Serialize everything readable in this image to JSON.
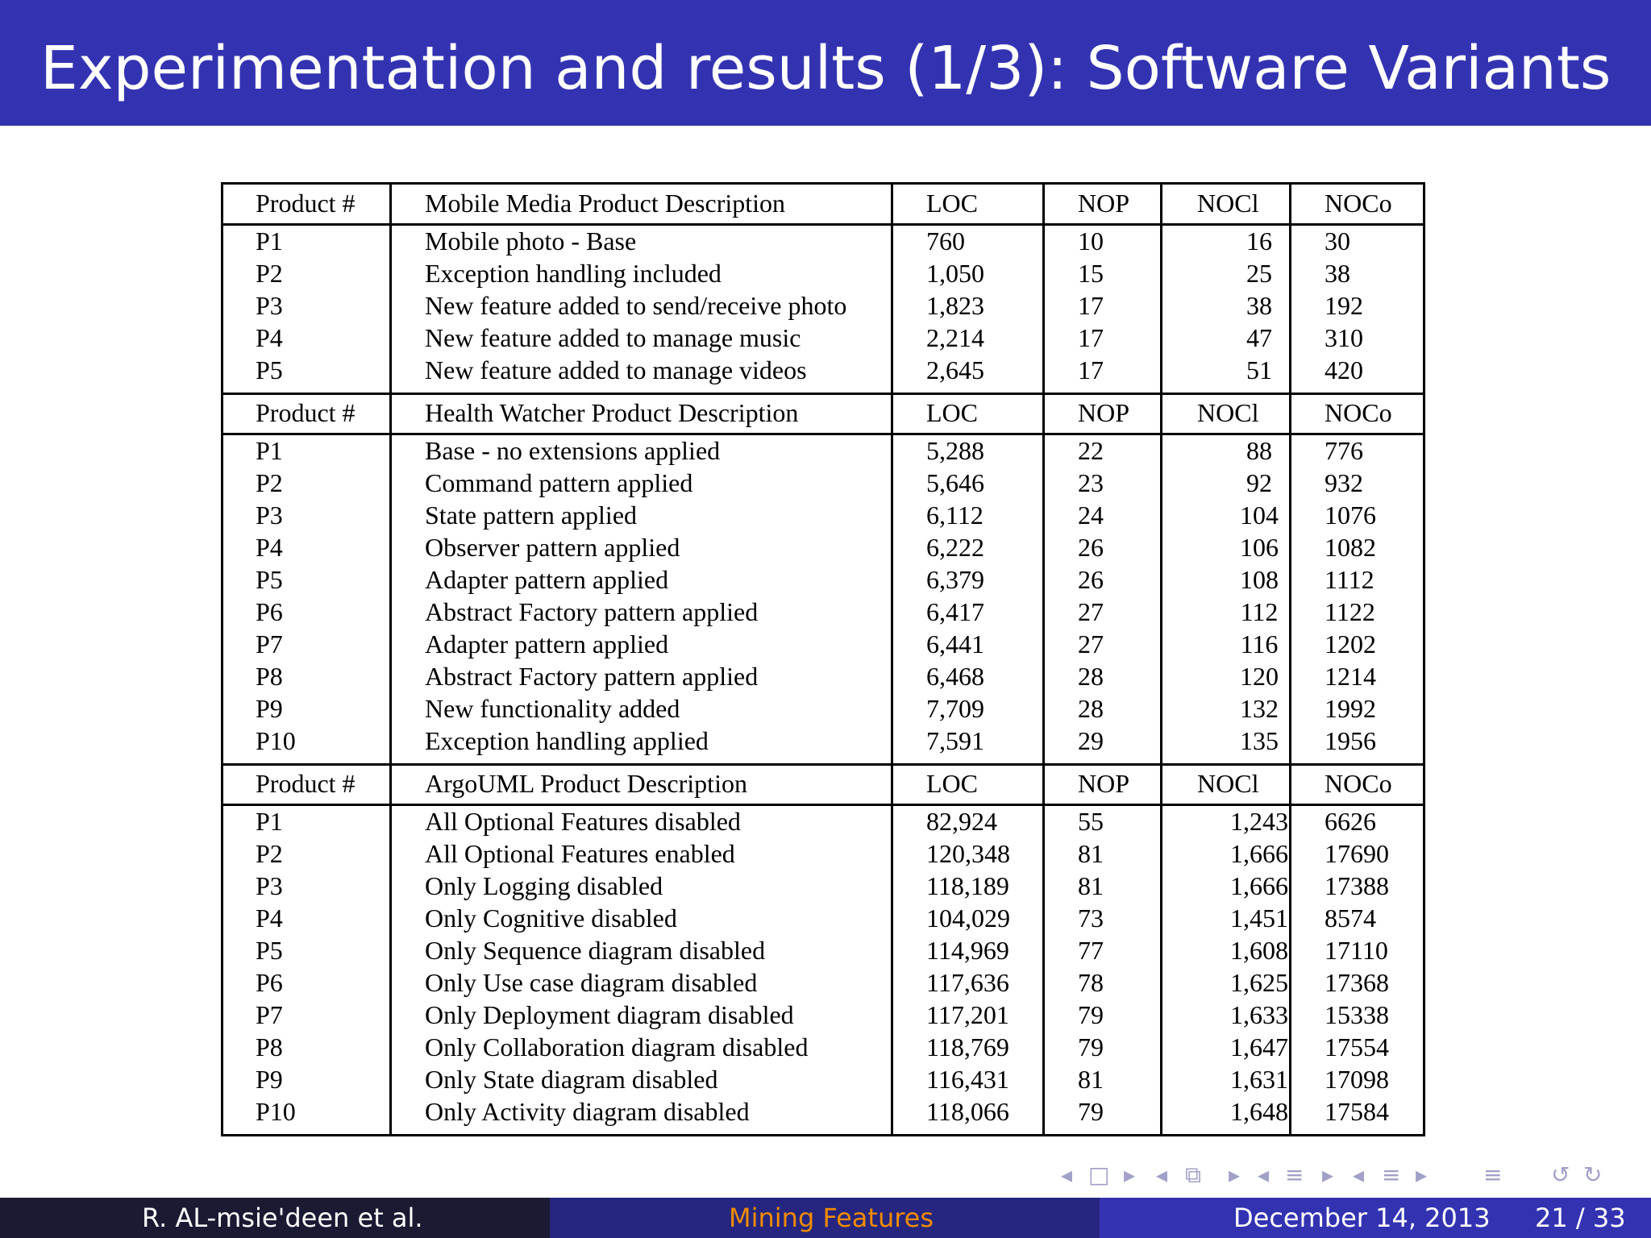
{
  "slide": {
    "title": "Experimentation and results (1/3): Software Variants"
  },
  "table": {
    "sections": [
      {
        "header": [
          "Product #",
          "Mobile Media Product Description",
          "LOC",
          "NOP",
          "NOCl",
          "NOCo"
        ],
        "rows": [
          [
            "P1",
            "Mobile photo - Base",
            "760",
            "10",
            "16",
            "30"
          ],
          [
            "P2",
            "Exception handling included",
            "1,050",
            "15",
            "25",
            "38"
          ],
          [
            "P3",
            "New feature added to send/receive photo",
            "1,823",
            "17",
            "38",
            "192"
          ],
          [
            "P4",
            "New feature added to manage music",
            "2,214",
            "17",
            "47",
            "310"
          ],
          [
            "P5",
            "New feature added to manage videos",
            "2,645",
            "17",
            "51",
            "420"
          ]
        ]
      },
      {
        "header": [
          "Product #",
          "Health Watcher Product Description",
          "LOC",
          "NOP",
          "NOCl",
          "NOCo"
        ],
        "rows": [
          [
            "P1",
            "Base - no extensions applied",
            "5,288",
            "22",
            "88",
            "776"
          ],
          [
            "P2",
            "Command pattern applied",
            "5,646",
            "23",
            "92",
            "932"
          ],
          [
            "P3",
            "State pattern applied",
            "6,112",
            "24",
            "104",
            "1076"
          ],
          [
            "P4",
            "Observer pattern applied",
            "6,222",
            "26",
            "106",
            "1082"
          ],
          [
            "P5",
            "Adapter pattern applied",
            "6,379",
            "26",
            "108",
            "1112"
          ],
          [
            "P6",
            "Abstract Factory pattern applied",
            "6,417",
            "27",
            "112",
            "1122"
          ],
          [
            "P7",
            "Adapter pattern applied",
            "6,441",
            "27",
            "116",
            "1202"
          ],
          [
            "P8",
            "Abstract Factory pattern applied",
            "6,468",
            "28",
            "120",
            "1214"
          ],
          [
            "P9",
            "New functionality added",
            "7,709",
            "28",
            "132",
            "1992"
          ],
          [
            "P10",
            "Exception handling applied",
            "7,591",
            "29",
            "135",
            "1956"
          ]
        ]
      },
      {
        "header": [
          "Product #",
          "ArgoUML Product Description",
          "LOC",
          "NOP",
          "NOCl",
          "NOCo"
        ],
        "rows": [
          [
            "P1",
            "All Optional Features disabled",
            "82,924",
            "55",
            "1,243",
            "6626"
          ],
          [
            "P2",
            "All Optional Features enabled",
            "120,348",
            "81",
            "1,666",
            "17690"
          ],
          [
            "P3",
            "Only Logging disabled",
            "118,189",
            "81",
            "1,666",
            "17388"
          ],
          [
            "P4",
            "Only Cognitive disabled",
            "104,029",
            "73",
            "1,451",
            "8574"
          ],
          [
            "P5",
            "Only Sequence diagram disabled",
            "114,969",
            "77",
            "1,608",
            "17110"
          ],
          [
            "P6",
            "Only Use case diagram disabled",
            "117,636",
            "78",
            "1,625",
            "17368"
          ],
          [
            "P7",
            "Only Deployment diagram disabled",
            "117,201",
            "79",
            "1,633",
            "15338"
          ],
          [
            "P8",
            "Only Collaboration diagram disabled",
            "118,769",
            "79",
            "1,647",
            "17554"
          ],
          [
            "P9",
            "Only State diagram disabled",
            "116,431",
            "81",
            "1,631",
            "17098"
          ],
          [
            "P10",
            "Only Activity diagram disabled",
            "118,066",
            "79",
            "1,648",
            "17584"
          ]
        ]
      }
    ]
  },
  "nav": {
    "icons": [
      "◂",
      "□",
      "▸",
      "◂",
      "⧉",
      "▸",
      "◂",
      "≡",
      "▸",
      "◂",
      "≡",
      "▸",
      "≡",
      "↺",
      "↻"
    ],
    "icon_names": [
      "prev-frame-icon",
      "frame-icon",
      "next-frame-icon",
      "prev-subsection-icon",
      "subsection-icon",
      "next-subsection-icon",
      "prev-section-icon",
      "section-icon",
      "next-section-icon",
      "prev-slide-icon",
      "slide-icon",
      "next-slide-icon",
      "outline-icon",
      "search-back-icon",
      "search-forward-icon"
    ]
  },
  "footer": {
    "author": "R. AL-msie'deen et al.",
    "short_title": "Mining Features",
    "date": "December 14, 2013",
    "page": "21 / 33"
  },
  "colors": {
    "title_bg": "#3333b2",
    "footer_left": "#1a1a33",
    "footer_mid": "#262680",
    "footer_right": "#3333b2",
    "footer_accent": "#f08c00",
    "nav_icons": "#a0a0c8"
  }
}
